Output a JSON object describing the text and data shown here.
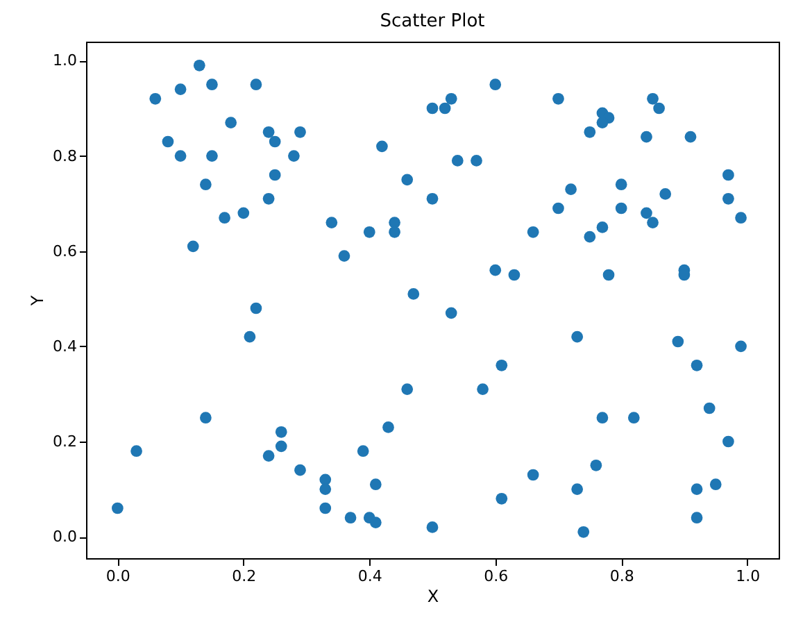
{
  "chart_data": {
    "type": "scatter",
    "title": "Scatter Plot",
    "xlabel": "X",
    "ylabel": "Y",
    "marker": "circle",
    "xlim": [
      -0.05,
      1.05
    ],
    "ylim": [
      -0.045,
      1.04
    ],
    "xticks": [
      {
        "value": 0,
        "label": "0.0"
      },
      {
        "value": 0.2,
        "label": "0.2"
      },
      {
        "value": 0.4,
        "label": "0.4"
      },
      {
        "value": 0.6,
        "label": "0.6"
      },
      {
        "value": 0.8,
        "label": "0.8"
      },
      {
        "value": 1,
        "label": "1.0"
      }
    ],
    "yticks": [
      {
        "value": 0,
        "label": "0.0"
      },
      {
        "value": 0.2,
        "label": "0.2"
      },
      {
        "value": 0.4,
        "label": "0.4"
      },
      {
        "value": 0.6,
        "label": "0.6"
      },
      {
        "value": 0.8,
        "label": "0.8"
      },
      {
        "value": 1,
        "label": "1.0"
      }
    ],
    "series": [
      {
        "color": "#1f77b4",
        "x": [
          0.06,
          0.1,
          0.13,
          0.15,
          0.22,
          0.18,
          0.08,
          0.1,
          0.15,
          0.24,
          0.25,
          0.29,
          0.28,
          0.14,
          0.25,
          0.24,
          0.17,
          0.2,
          0.12,
          0.34,
          0.36,
          0.4,
          0.44,
          0.44,
          0.42,
          0.46,
          0.5,
          0.47,
          0.5,
          0.52,
          0.53,
          0.6,
          0.7,
          0.77,
          0.78,
          0.77,
          0.75,
          0.85,
          0.86,
          0.84,
          0.91,
          0.54,
          0.57,
          0.72,
          0.7,
          0.8,
          0.8,
          0.87,
          0.84,
          0.85,
          0.75,
          0.77,
          0.66,
          0.97,
          0.97,
          0.99,
          0.6,
          0.63,
          0.78,
          0.9,
          0.9,
          0.0,
          0.03,
          0.14,
          0.21,
          0.22,
          0.26,
          0.26,
          0.24,
          0.29,
          0.33,
          0.33,
          0.33,
          0.37,
          0.4,
          0.41,
          0.39,
          0.41,
          0.43,
          0.46,
          0.5,
          0.53,
          0.61,
          0.58,
          0.73,
          0.89,
          0.92,
          0.99,
          0.94,
          0.77,
          0.82,
          0.97,
          0.76,
          0.66,
          0.73,
          0.61,
          0.92,
          0.95,
          0.92,
          0.74
        ],
        "values": [
          0.92,
          0.94,
          0.99,
          0.95,
          0.95,
          0.87,
          0.83,
          0.8,
          0.8,
          0.85,
          0.83,
          0.85,
          0.8,
          0.74,
          0.76,
          0.71,
          0.67,
          0.68,
          0.61,
          0.66,
          0.59,
          0.64,
          0.66,
          0.64,
          0.82,
          0.75,
          0.71,
          0.51,
          0.9,
          0.9,
          0.92,
          0.95,
          0.92,
          0.89,
          0.88,
          0.87,
          0.85,
          0.92,
          0.9,
          0.84,
          0.84,
          0.79,
          0.79,
          0.73,
          0.69,
          0.74,
          0.69,
          0.72,
          0.68,
          0.66,
          0.63,
          0.65,
          0.64,
          0.76,
          0.71,
          0.67,
          0.56,
          0.55,
          0.55,
          0.56,
          0.55,
          0.06,
          0.18,
          0.25,
          0.42,
          0.48,
          0.22,
          0.19,
          0.17,
          0.14,
          0.12,
          0.1,
          0.06,
          0.04,
          0.04,
          0.03,
          0.18,
          0.11,
          0.23,
          0.31,
          0.02,
          0.47,
          0.36,
          0.31,
          0.42,
          0.41,
          0.36,
          0.4,
          0.27,
          0.25,
          0.25,
          0.2,
          0.15,
          0.13,
          0.1,
          0.08,
          0.1,
          0.11,
          0.04,
          0.01
        ]
      }
    ]
  }
}
